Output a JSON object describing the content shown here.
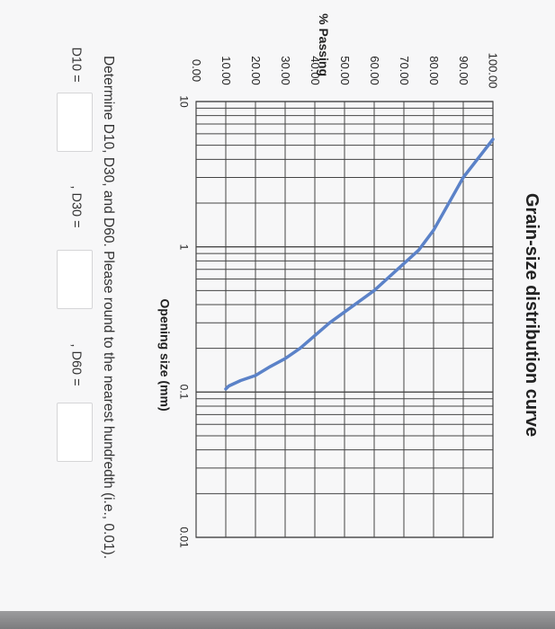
{
  "chart_data": {
    "type": "line",
    "title": "Grain-size distribution curve",
    "xlabel": "Opening size (mm)",
    "ylabel": "% Passing",
    "xscale": "log",
    "xlim": [
      10,
      0.01
    ],
    "ylim": [
      0,
      100
    ],
    "x_ticks": [
      "10",
      "1",
      "0.1",
      "0.01"
    ],
    "y_ticks": [
      "100.00",
      "90.00",
      "80.00",
      "70.00",
      "60.00",
      "50.00",
      "40.00",
      "30.00",
      "20.00",
      "10.00",
      "0.00"
    ],
    "grid": true,
    "series": [
      {
        "color": "#5b82c8",
        "x": [
          5.5,
          3.0,
          1.3,
          0.95,
          0.5,
          0.3,
          0.2,
          0.17,
          0.15,
          0.13,
          0.12,
          0.11,
          0.105
        ],
        "y": [
          100,
          90,
          80,
          75,
          60,
          45,
          35,
          30,
          25,
          20,
          15,
          11,
          10
        ]
      }
    ]
  },
  "question": {
    "text": "Determine D10, D30, and D60. Please round to the nearest hundredth (i.e., 0.01).",
    "d10_label": "D10 =",
    "d30_label": ", D30 =",
    "d60_label": ", D60 ="
  },
  "colors": {
    "accent": "#5b82c8",
    "grid": "#444444"
  }
}
